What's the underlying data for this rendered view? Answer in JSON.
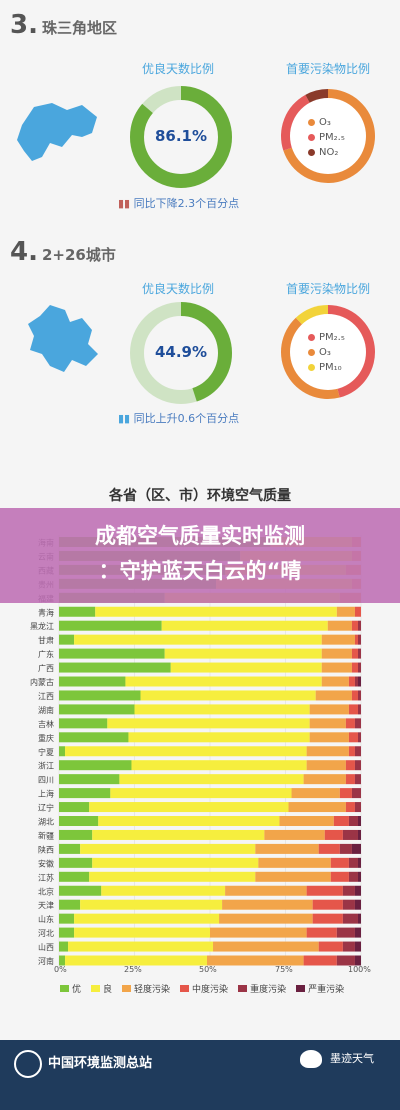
{
  "section3": {
    "num": "3.",
    "name": "珠三角地区",
    "good_title": "优良天数比例",
    "good_value": "86.1%",
    "good_fraction": 0.861,
    "pollutant_title": "首要污染物比例",
    "pollutants": [
      {
        "label": "O₃",
        "share": 0.7,
        "color": "#e98a3b"
      },
      {
        "label": "PM₂.₅",
        "share": 0.22,
        "color": "#e55a5a"
      },
      {
        "label": "NO₂",
        "share": 0.08,
        "color": "#8a3a2a"
      }
    ],
    "note": "同比下降2.3个百分点"
  },
  "section4": {
    "num": "4.",
    "name": "2+26城市",
    "good_title": "优良天数比例",
    "good_value": "44.9%",
    "good_fraction": 0.449,
    "pollutant_title": "首要污染物比例",
    "pollutants": [
      {
        "label": "PM₂.₅",
        "share": 0.46,
        "color": "#e55a5a"
      },
      {
        "label": "O₃",
        "share": 0.42,
        "color": "#e98a3b"
      },
      {
        "label": "PM₁₀",
        "share": 0.12,
        "color": "#f2d33a"
      }
    ],
    "note": "同比上升0.6个百分点"
  },
  "banner": {
    "line1": "成都空气质量实时监测",
    "line2": "：守护蓝天白云的“晴"
  },
  "footer": {
    "org": "中国环境监测总站",
    "brand": "墨迹天气"
  },
  "chart_data": {
    "type": "bar",
    "orientation": "horizontal-stacked",
    "title": "各省（区、市）环境空气质量",
    "xlim": [
      0,
      100
    ],
    "xticks": [
      "0%",
      "25%",
      "50%",
      "75%",
      "100%"
    ],
    "categories": [
      "海南",
      "云南",
      "西藏",
      "贵州",
      "福建",
      "青海",
      "黑龙江",
      "甘肃",
      "广东",
      "广西",
      "内蒙古",
      "江西",
      "湖南",
      "吉林",
      "重庆",
      "宁夏",
      "浙江",
      "四川",
      "上海",
      "辽宁",
      "湖北",
      "新疆",
      "陕西",
      "安徽",
      "江苏",
      "北京",
      "天津",
      "山东",
      "河北",
      "山西",
      "河南"
    ],
    "series": [
      {
        "name": "优",
        "color": "#7dc63b",
        "values": [
          70,
          60,
          55,
          52,
          35,
          12,
          34,
          5,
          35,
          37,
          22,
          27,
          25,
          16,
          23,
          2,
          24,
          20,
          17,
          10,
          13,
          11,
          7,
          11,
          10,
          14,
          7,
          5,
          5,
          3,
          2
        ]
      },
      {
        "name": "良",
        "color": "#f6ee3e",
        "values": [
          27,
          37,
          40,
          45,
          58,
          80,
          55,
          82,
          52,
          50,
          65,
          58,
          58,
          67,
          60,
          80,
          58,
          61,
          60,
          66,
          60,
          57,
          58,
          55,
          55,
          41,
          47,
          48,
          45,
          48,
          47
        ]
      },
      {
        "name": "轻度污染",
        "color": "#f2a54a",
        "values": [
          3,
          3,
          5,
          3,
          7,
          6,
          8,
          11,
          10,
          10,
          9,
          12,
          13,
          12,
          13,
          14,
          13,
          14,
          16,
          19,
          18,
          20,
          21,
          24,
          25,
          27,
          30,
          31,
          32,
          35,
          32
        ]
      },
      {
        "name": "中度污染",
        "color": "#e5564a",
        "values": [
          0,
          0,
          0,
          0,
          0,
          2,
          2,
          1,
          2,
          2,
          2,
          2,
          3,
          3,
          3,
          2,
          3,
          3,
          4,
          3,
          5,
          6,
          7,
          6,
          6,
          12,
          10,
          10,
          10,
          8,
          11
        ]
      },
      {
        "name": "重度污染",
        "color": "#9b3446",
        "values": [
          0,
          0,
          0,
          0,
          0,
          0,
          1,
          1,
          1,
          1,
          1,
          1,
          1,
          2,
          1,
          2,
          2,
          2,
          3,
          2,
          3,
          5,
          4,
          3,
          3,
          4,
          4,
          5,
          6,
          4,
          6
        ]
      },
      {
        "name": "严重污染",
        "color": "#6a2040",
        "values": [
          0,
          0,
          0,
          0,
          0,
          0,
          0,
          0,
          0,
          0,
          1,
          0,
          0,
          0,
          0,
          0,
          0,
          0,
          0,
          0,
          1,
          1,
          3,
          1,
          1,
          2,
          2,
          1,
          2,
          2,
          2
        ]
      }
    ]
  }
}
